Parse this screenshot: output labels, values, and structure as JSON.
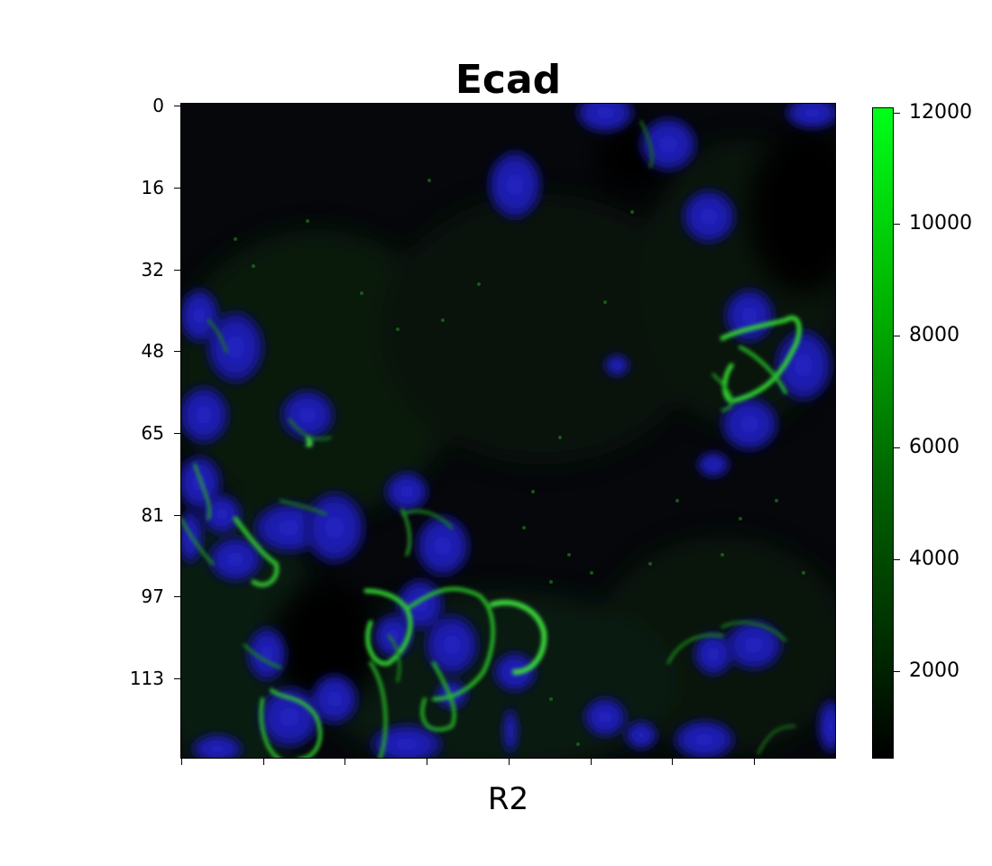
{
  "title": "Ecad",
  "xlabel": "R2",
  "y_ticks": [
    "0",
    "16",
    "32",
    "48",
    "65",
    "81",
    "97",
    "113"
  ],
  "colorbar": {
    "ticks": [
      "2000",
      "4000",
      "6000",
      "8000",
      "10000",
      "12000"
    ],
    "colors": [
      "#000000",
      "#003300",
      "#006a00",
      "#00b400",
      "#00ff1a"
    ]
  },
  "image": {
    "description_channels": [
      "nuclei-blue",
      "ecad-green"
    ],
    "nucleus_color": "#1a1aa8",
    "membrane_color": "#2fd82f",
    "background_color": "#040406"
  }
}
